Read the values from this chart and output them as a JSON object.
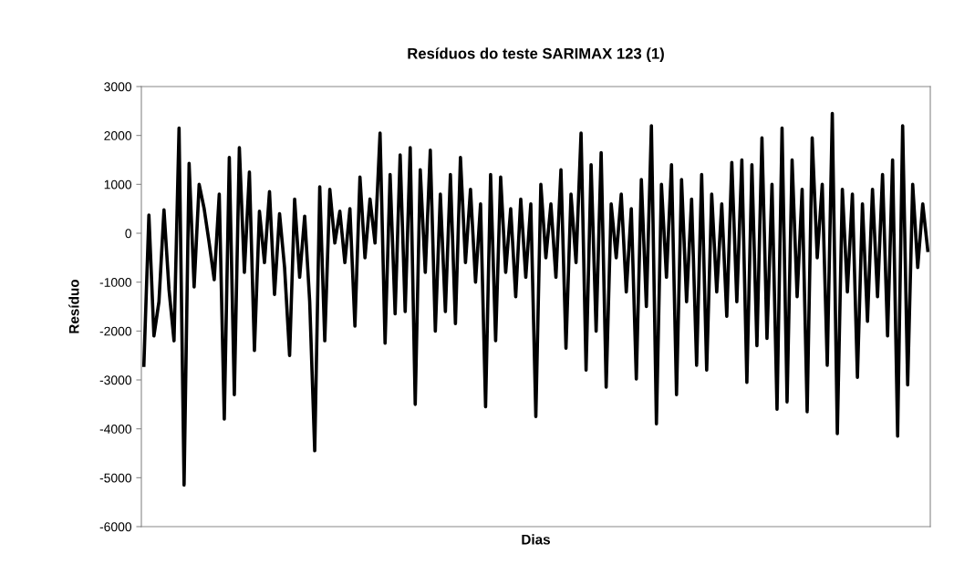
{
  "chart_data": {
    "type": "line",
    "title": "Resíduos do teste SARIMAX 123 (1)",
    "xlabel": "Dias",
    "ylabel": "Resíduo",
    "color": "#000000",
    "ylim": [
      -6000,
      3000
    ],
    "yticks": [
      -6000,
      -5000,
      -4000,
      -3000,
      -2000,
      -1000,
      0,
      1000,
      2000,
      3000
    ],
    "grid": false,
    "legend": false,
    "marker": "none",
    "line_style": "solid",
    "categories": [
      null,
      null,
      null,
      null,
      null,
      null,
      null,
      null,
      null,
      null,
      null,
      null,
      null,
      null,
      null,
      null,
      null,
      null,
      null,
      null,
      null,
      null,
      null,
      null,
      null,
      null,
      null,
      null,
      null,
      null,
      null,
      null,
      null,
      null,
      null,
      null,
      null,
      null,
      null,
      null,
      null,
      null,
      null,
      null,
      null,
      null,
      null,
      null,
      null,
      null,
      null,
      null,
      null,
      null,
      null,
      null,
      null,
      null,
      null,
      null,
      null,
      null,
      null,
      null,
      null,
      null,
      null,
      null,
      null,
      null,
      null,
      null,
      null,
      null,
      null,
      null,
      null,
      null,
      null,
      null,
      null,
      null,
      null,
      null,
      null,
      null,
      null,
      null,
      null,
      null,
      null,
      null,
      null,
      null,
      null,
      null,
      null,
      null,
      null,
      null,
      null,
      null,
      null,
      null,
      null,
      null,
      null,
      null,
      null,
      null,
      null,
      null,
      null,
      null,
      null,
      null,
      null,
      null,
      null,
      null,
      null,
      null,
      null,
      null,
      null,
      null,
      null,
      null,
      null,
      null,
      null,
      null,
      null,
      null,
      null,
      null,
      null,
      null,
      null,
      null,
      null,
      null,
      null,
      null,
      null,
      null,
      null,
      null,
      null,
      null,
      null,
      null,
      null,
      null,
      null,
      null,
      null
    ],
    "values": [
      -2700,
      370,
      -2100,
      -1400,
      480,
      -1150,
      -2200,
      2150,
      -5150,
      1430,
      -1100,
      1000,
      500,
      -200,
      -950,
      800,
      -3800,
      1550,
      -3300,
      1750,
      -800,
      1250,
      -2400,
      450,
      -600,
      850,
      -1250,
      400,
      -700,
      -2500,
      700,
      -900,
      350,
      -1400,
      -4450,
      950,
      -2200,
      900,
      -200,
      450,
      -600,
      500,
      -1900,
      1150,
      -500,
      700,
      -200,
      2050,
      -2250,
      1200,
      -1650,
      1600,
      -1600,
      1750,
      -3500,
      1300,
      -800,
      1700,
      -2000,
      800,
      -1600,
      1200,
      -1850,
      1550,
      -600,
      900,
      -1000,
      600,
      -3550,
      1200,
      -2200,
      1150,
      -800,
      500,
      -1300,
      700,
      -900,
      600,
      -3750,
      1000,
      -500,
      600,
      -900,
      1300,
      -2350,
      800,
      -600,
      2050,
      -2800,
      1400,
      -2000,
      1650,
      -3150,
      600,
      -500,
      800,
      -1200,
      500,
      -2980,
      1100,
      -1500,
      2200,
      -3900,
      1000,
      -900,
      1400,
      -3300,
      1100,
      -1400,
      700,
      -2700,
      1200,
      -2800,
      800,
      -1200,
      600,
      -1700,
      1450,
      -1400,
      1500,
      -3050,
      1400,
      -2300,
      1950,
      -2150,
      1000,
      -3600,
      2150,
      -3450,
      1500,
      -1300,
      900,
      -3650,
      1950,
      -500,
      1000,
      -2700,
      2450,
      -4100,
      900,
      -1200,
      800,
      -2950,
      600,
      -1800,
      900,
      -1300,
      1200,
      -2100,
      1500,
      -4150,
      2200,
      -3100,
      1000,
      -700,
      600,
      -350
    ]
  }
}
